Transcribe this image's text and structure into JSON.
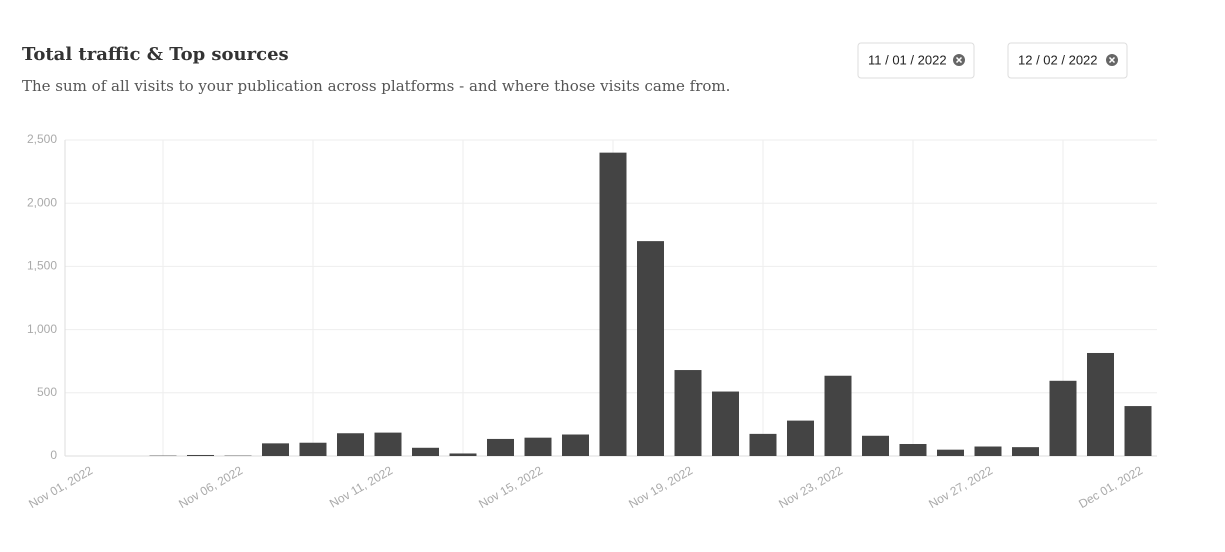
{
  "chart_data": {
    "type": "bar",
    "title": "Total traffic & Top sources",
    "subtitle": "The sum of all visits to your publication across platforms - and where those visits came from.",
    "categories": [
      "Nov 01, 2022",
      null,
      null,
      null,
      "Nov 06, 2022",
      null,
      null,
      null,
      "Nov 11, 2022",
      null,
      null,
      null,
      "Nov 15, 2022",
      null,
      null,
      null,
      "Nov 19, 2022",
      null,
      null,
      null,
      "Nov 23, 2022",
      null,
      null,
      null,
      "Nov 27, 2022",
      null,
      null,
      null,
      "Dec 01, 2022"
    ],
    "values": [
      0,
      0,
      3,
      8,
      3,
      100,
      105,
      180,
      185,
      65,
      20,
      135,
      145,
      170,
      2400,
      1700,
      680,
      510,
      175,
      280,
      635,
      160,
      95,
      50,
      75,
      70,
      595,
      815,
      395
    ],
    "color": "#444444",
    "ylim": [
      0,
      2500
    ],
    "yticks": [
      0,
      500,
      {
        "value": 1000,
        "label": "1,000"
      },
      {
        "value": 1500,
        "label": "1,500"
      },
      {
        "value": 2000,
        "label": "2,000"
      },
      {
        "value": 2500,
        "label": "2,500"
      }
    ],
    "grid": true
  },
  "date_inputs": [
    "11 / 01 / 2022",
    "12 / 02 / 2022"
  ]
}
